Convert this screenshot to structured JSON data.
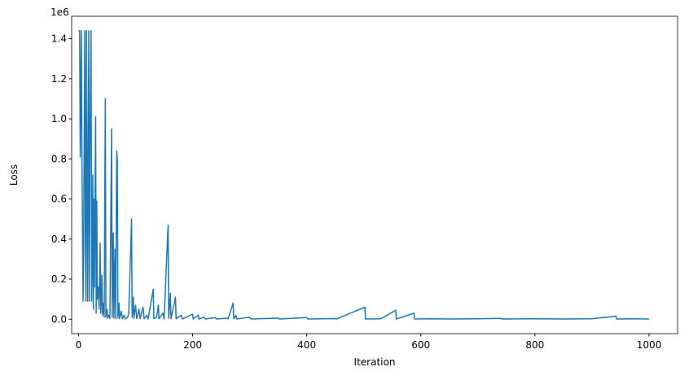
{
  "chart_data": {
    "type": "line",
    "xlabel": "Iteration",
    "ylabel": "Loss",
    "y_offset_label": "1e6",
    "xlim": [
      -12,
      1050
    ],
    "ylim": [
      -72000,
      1512000
    ],
    "xticks": [
      0,
      200,
      400,
      600,
      800,
      1000
    ],
    "yticks": [
      {
        "value": 0,
        "label": "0.0"
      },
      {
        "value": 200000,
        "label": "0.2"
      },
      {
        "value": 400000,
        "label": "0.4"
      },
      {
        "value": 600000,
        "label": "0.6"
      },
      {
        "value": 800000,
        "label": "0.8"
      },
      {
        "value": 1000000,
        "label": "1.0"
      },
      {
        "value": 1200000,
        "label": "1.2"
      },
      {
        "value": 1400000,
        "label": "1.4"
      }
    ],
    "grid": false,
    "x": [
      0,
      2,
      3,
      5,
      6,
      8,
      9,
      11,
      12,
      13,
      14,
      15,
      16,
      18,
      19,
      20,
      22,
      23,
      24,
      25,
      26,
      27,
      28,
      30,
      31,
      32,
      33,
      35,
      36,
      38,
      39,
      41,
      42,
      44,
      45,
      47,
      48,
      50,
      51,
      53,
      55,
      58,
      59,
      61,
      62,
      64,
      65,
      67,
      68,
      69,
      71,
      72,
      75,
      77,
      80,
      82,
      86,
      88,
      93,
      94,
      96,
      97,
      100,
      102,
      106,
      108,
      113,
      115,
      120,
      122,
      131,
      132,
      137,
      140,
      141,
      148,
      150,
      157,
      158,
      161,
      162,
      170,
      171,
      180,
      182,
      200,
      201,
      210,
      211,
      220,
      222,
      240,
      242,
      260,
      262,
      271,
      272,
      276,
      277,
      300,
      302,
      350,
      352,
      400,
      402,
      450,
      452,
      502,
      503,
      530,
      556,
      557,
      588,
      589,
      620,
      650,
      700,
      740,
      742,
      800,
      850,
      900,
      942,
      943,
      970,
      1000
    ],
    "series": [
      {
        "name": "Loss",
        "color": "#1f77b4",
        "values": [
          1440000,
          1440000,
          810000,
          1440000,
          810000,
          90000,
          360000,
          1440000,
          360000,
          90000,
          1440000,
          810000,
          90000,
          1440000,
          90000,
          810000,
          1440000,
          90000,
          300000,
          720000,
          50000,
          600000,
          160000,
          1010000,
          30000,
          590000,
          100000,
          160000,
          50000,
          380000,
          30000,
          220000,
          20000,
          80000,
          10000,
          1100000,
          10000,
          50000,
          5000,
          20000,
          3000,
          950000,
          10000,
          430000,
          5000,
          350000,
          2000,
          840000,
          800000,
          5000,
          80000,
          3000,
          40000,
          2000,
          20000,
          1000,
          10000,
          30000,
          500000,
          10000,
          110000,
          5000,
          70000,
          3000,
          50000,
          2000,
          60000,
          2000,
          20000,
          1000,
          150000,
          3000,
          10000,
          70000,
          2000,
          30000,
          1000,
          470000,
          5000,
          130000,
          2000,
          110000,
          2000,
          20000,
          1000,
          25000,
          1000,
          20000,
          1000,
          10000,
          1000,
          8000,
          1000,
          5000,
          1000,
          80000,
          2000,
          20000,
          1000,
          10000,
          1000,
          5000,
          1000,
          8000,
          1000,
          3000,
          1000,
          60000,
          1000,
          2000,
          45000,
          1000,
          30000,
          1000,
          2000,
          1000,
          2000,
          4000,
          1000,
          2000,
          1000,
          2000,
          15000,
          1000,
          2000,
          1000
        ]
      }
    ]
  }
}
